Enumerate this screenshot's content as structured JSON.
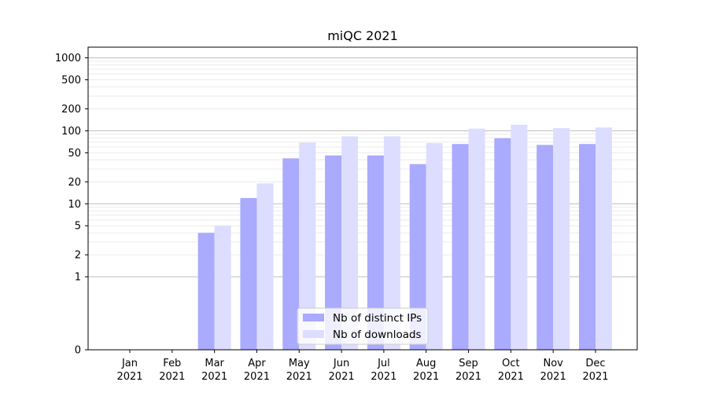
{
  "chart_data": {
    "type": "bar",
    "title": "miQC 2021",
    "xlabel": "",
    "ylabel": "",
    "yscale": "symlog",
    "ylim": [
      0,
      1400
    ],
    "y_ticks": [
      0,
      1,
      2,
      5,
      10,
      20,
      50,
      100,
      200,
      500,
      1000
    ],
    "y_tick_labels": [
      "0",
      "1",
      "2",
      "5",
      "10",
      "20",
      "50",
      "100",
      "200",
      "500",
      "1000"
    ],
    "grid": true,
    "legend_position": "bottom-center",
    "categories": [
      [
        "Jan",
        "2021"
      ],
      [
        "Feb",
        "2021"
      ],
      [
        "Mar",
        "2021"
      ],
      [
        "Apr",
        "2021"
      ],
      [
        "May",
        "2021"
      ],
      [
        "Jun",
        "2021"
      ],
      [
        "Jul",
        "2021"
      ],
      [
        "Aug",
        "2021"
      ],
      [
        "Sep",
        "2021"
      ],
      [
        "Oct",
        "2021"
      ],
      [
        "Nov",
        "2021"
      ],
      [
        "Dec",
        "2021"
      ]
    ],
    "series": [
      {
        "name": "Nb of distinct IPs",
        "color": "#aaaaff",
        "values": [
          0,
          0,
          4,
          12,
          42,
          46,
          46,
          35,
          66,
          79,
          64,
          66
        ]
      },
      {
        "name": "Nb of downloads",
        "color": "#ddddff",
        "values": [
          0,
          0,
          5,
          19,
          69,
          84,
          84,
          68,
          107,
          121,
          109,
          111
        ]
      }
    ]
  }
}
